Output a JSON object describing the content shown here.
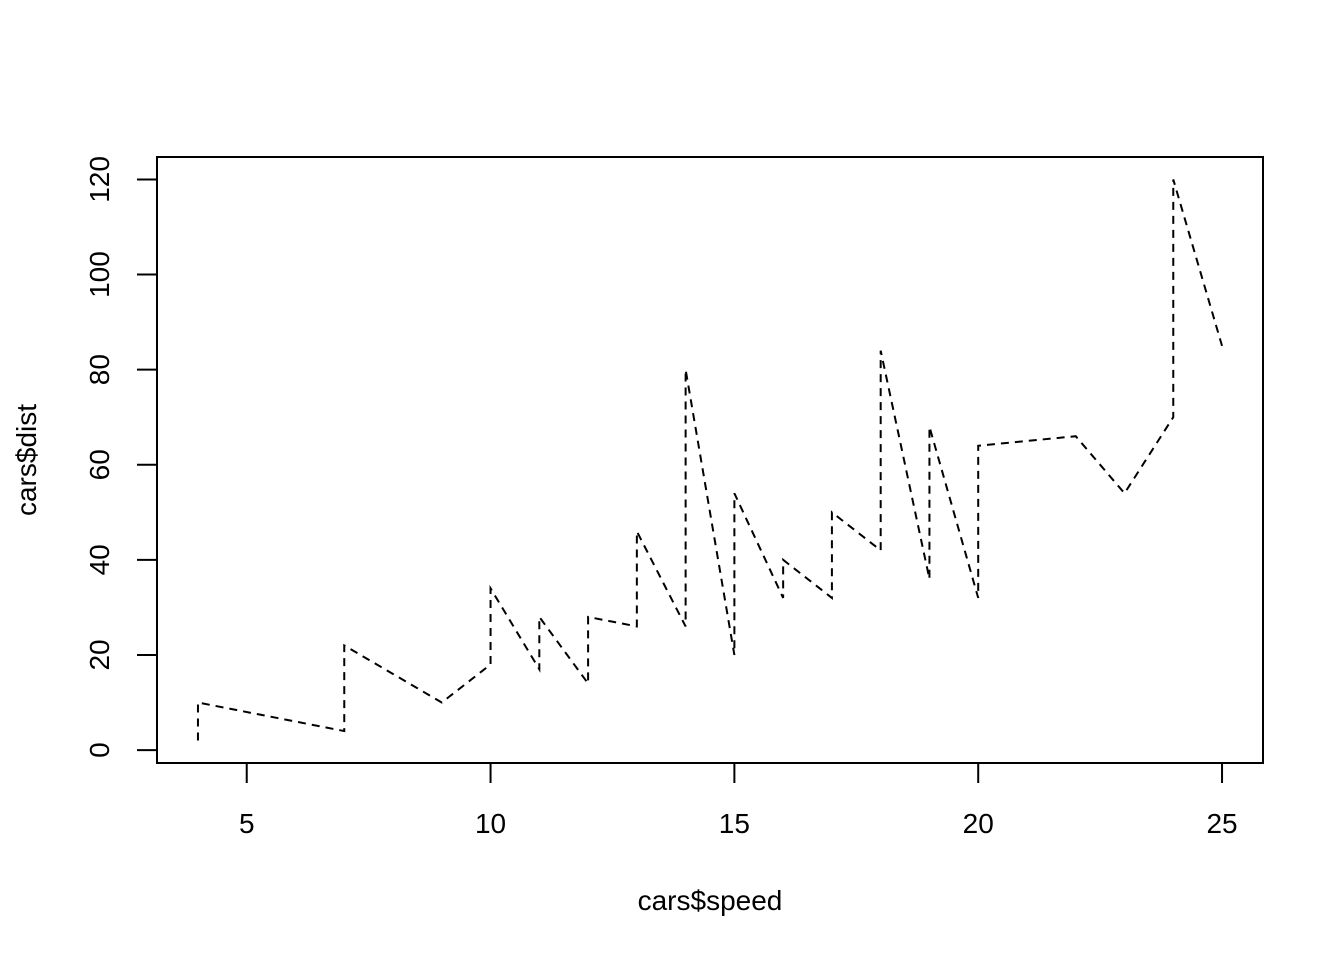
{
  "chart_data": {
    "type": "line",
    "title": "",
    "xlabel": "cars$speed",
    "ylabel": "cars$dist",
    "xlim": [
      3.16,
      25.84
    ],
    "ylim": [
      -2.72,
      124.72
    ],
    "x_ticks": [
      5,
      10,
      15,
      20,
      25
    ],
    "y_ticks": [
      0,
      20,
      40,
      60,
      80,
      100,
      120
    ],
    "grid": false,
    "line_style": "dashed",
    "series": [
      {
        "x": [
          4,
          4,
          7,
          7,
          8,
          9,
          10,
          10,
          10,
          11,
          11,
          12,
          12,
          12,
          12,
          13,
          13,
          13,
          13,
          14,
          14,
          14,
          14,
          15,
          15,
          15,
          16,
          16,
          17,
          17,
          17,
          18,
          18,
          18,
          18,
          19,
          19,
          19,
          20,
          20,
          20,
          20,
          20,
          22,
          23,
          24,
          24,
          24,
          24,
          25
        ],
        "y": [
          2,
          10,
          4,
          22,
          16,
          10,
          18,
          26,
          34,
          17,
          28,
          14,
          20,
          24,
          28,
          26,
          34,
          34,
          46,
          26,
          36,
          60,
          80,
          20,
          26,
          54,
          32,
          40,
          32,
          40,
          50,
          42,
          56,
          76,
          84,
          36,
          46,
          68,
          32,
          48,
          52,
          56,
          64,
          66,
          54,
          70,
          92,
          93,
          120,
          85
        ]
      }
    ]
  }
}
